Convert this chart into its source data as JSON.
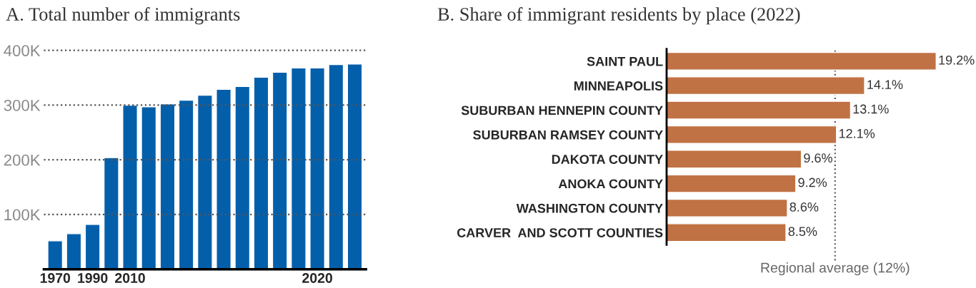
{
  "chart_data": [
    {
      "type": "bar",
      "title": "A. Total number of immigrants",
      "categories": [
        "1970",
        null,
        "1990",
        null,
        "2010",
        null,
        null,
        null,
        null,
        null,
        null,
        null,
        null,
        null,
        "2020",
        null,
        null
      ],
      "values": [
        52000,
        65000,
        82000,
        204000,
        300000,
        297000,
        302000,
        309000,
        318000,
        329000,
        334000,
        351000,
        360000,
        368000,
        368000,
        374000,
        375000
      ],
      "color": "#045fab",
      "ylim": [
        0,
        400000
      ],
      "yticks": [
        {
          "value": 100000,
          "label": "100K"
        },
        {
          "value": 200000,
          "label": "200K"
        },
        {
          "value": 300000,
          "label": "300K"
        },
        {
          "value": 400000,
          "label": "400K"
        }
      ],
      "grid": "y"
    },
    {
      "type": "bar",
      "orientation": "horizontal",
      "title": "B. Share of immigrant residents by place (2022)",
      "categories": [
        "SAINT PAUL",
        "MINNEAPOLIS",
        "SUBURBAN HENNEPIN COUNTY",
        "SUBURBAN RAMSEY COUNTY",
        "DAKOTA COUNTY",
        "ANOKA COUNTY",
        "WASHINGTON COUNTY",
        "CARVER  AND SCOTT COUNTIES"
      ],
      "values": [
        19.2,
        14.1,
        13.1,
        12.1,
        9.6,
        9.2,
        8.6,
        8.5
      ],
      "value_labels": [
        "19.2%",
        "14.1%",
        "13.1%",
        "12.1%",
        "9.6%",
        "9.2%",
        "8.6%",
        "8.5%"
      ],
      "color": "#c07244",
      "tick_labels": "y",
      "ref_lines": [
        {
          "axis": "x",
          "value": 12,
          "label": "Regional average (12%)",
          "color": "#555555",
          "line_style": "dotted"
        }
      ]
    }
  ]
}
